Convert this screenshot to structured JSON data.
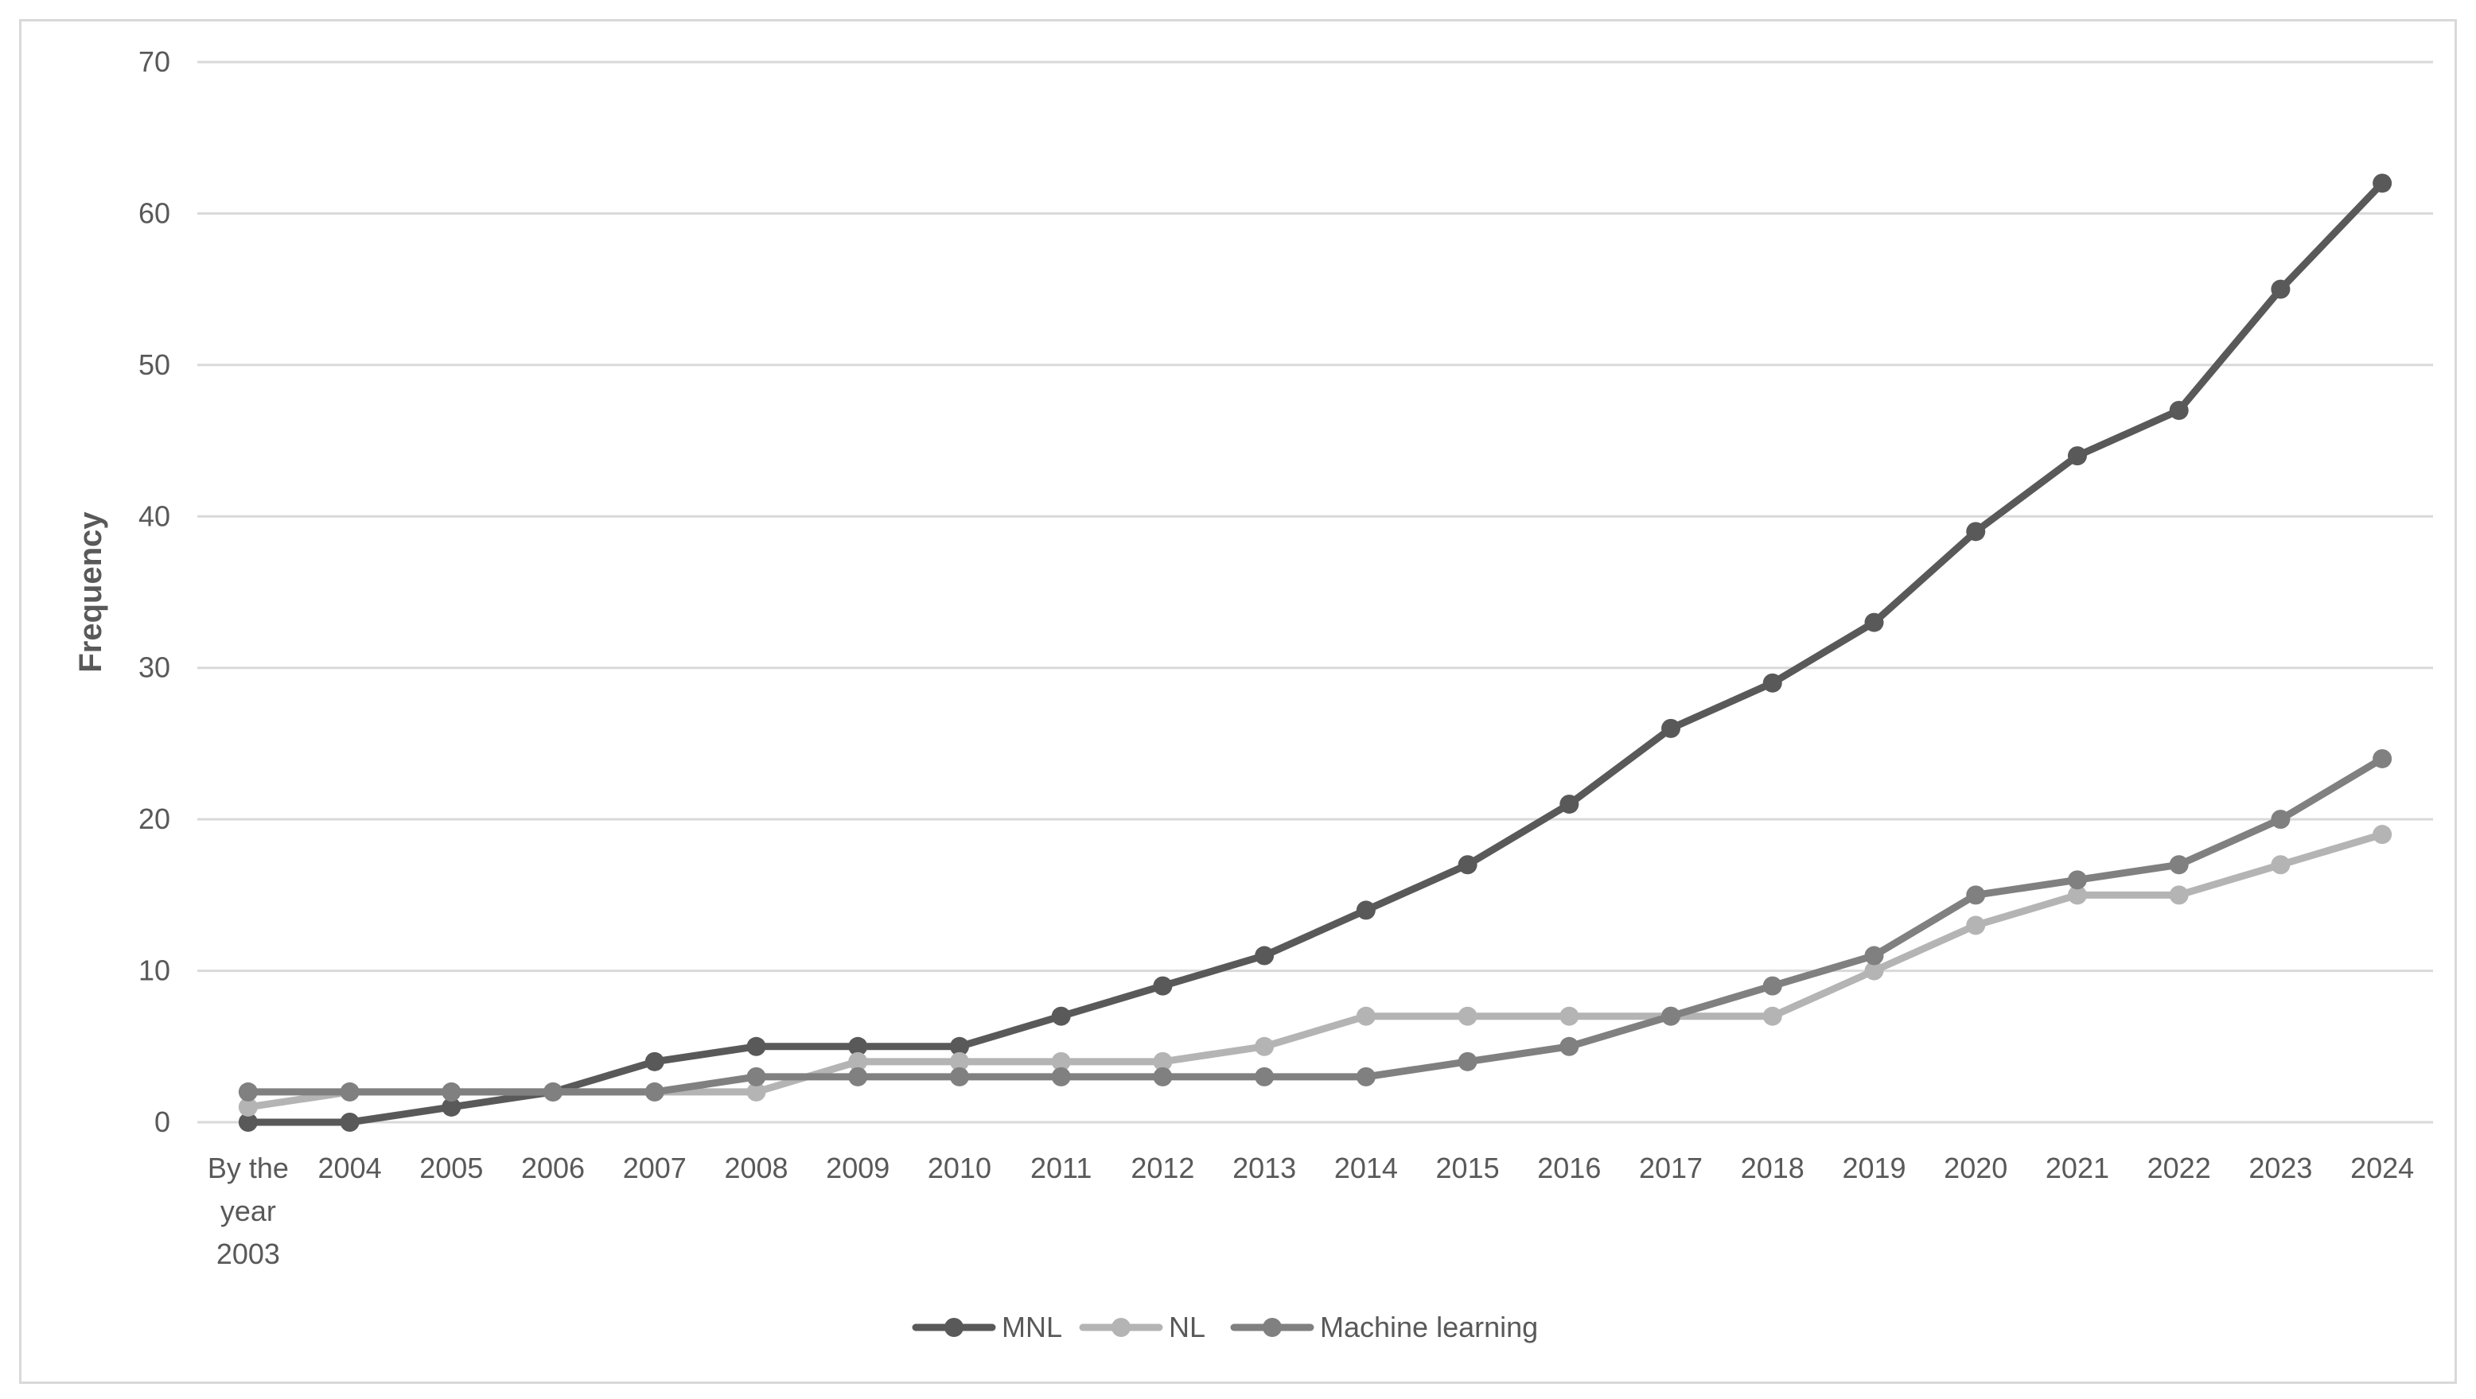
{
  "chart_data": {
    "type": "line",
    "title": "",
    "xlabel": "",
    "ylabel": "Frequency",
    "ylim": [
      0,
      70
    ],
    "yticks": [
      "0",
      "10",
      "20",
      "30",
      "40",
      "50",
      "60",
      "70"
    ],
    "grid": "horizontal",
    "legend_position": "bottom",
    "categories": [
      [
        "By the",
        "year",
        "2003"
      ],
      [
        "2004"
      ],
      [
        "2005"
      ],
      [
        "2006"
      ],
      [
        "2007"
      ],
      [
        "2008"
      ],
      [
        "2009"
      ],
      [
        "2010"
      ],
      [
        "2011"
      ],
      [
        "2012"
      ],
      [
        "2013"
      ],
      [
        "2014"
      ],
      [
        "2015"
      ],
      [
        "2016"
      ],
      [
        "2017"
      ],
      [
        "2018"
      ],
      [
        "2019"
      ],
      [
        "2020"
      ],
      [
        "2021"
      ],
      [
        "2022"
      ],
      [
        "2023"
      ],
      [
        "2024"
      ]
    ],
    "series": [
      {
        "name": "MNL",
        "color": "#595959",
        "values": [
          0,
          0,
          1,
          2,
          4,
          5,
          5,
          5,
          7,
          9,
          11,
          14,
          17,
          21,
          26,
          29,
          33,
          39,
          44,
          47,
          55,
          62
        ]
      },
      {
        "name": "NL",
        "color": "#b4b4b4",
        "values": [
          1,
          2,
          2,
          2,
          2,
          2,
          4,
          4,
          4,
          4,
          5,
          7,
          7,
          7,
          7,
          7,
          10,
          13,
          15,
          15,
          17,
          19
        ]
      },
      {
        "name": "Machine learning",
        "color": "#808080",
        "values": [
          2,
          2,
          2,
          2,
          2,
          3,
          3,
          3,
          3,
          3,
          3,
          3,
          4,
          5,
          7,
          9,
          11,
          15,
          16,
          17,
          20,
          24
        ]
      }
    ]
  }
}
